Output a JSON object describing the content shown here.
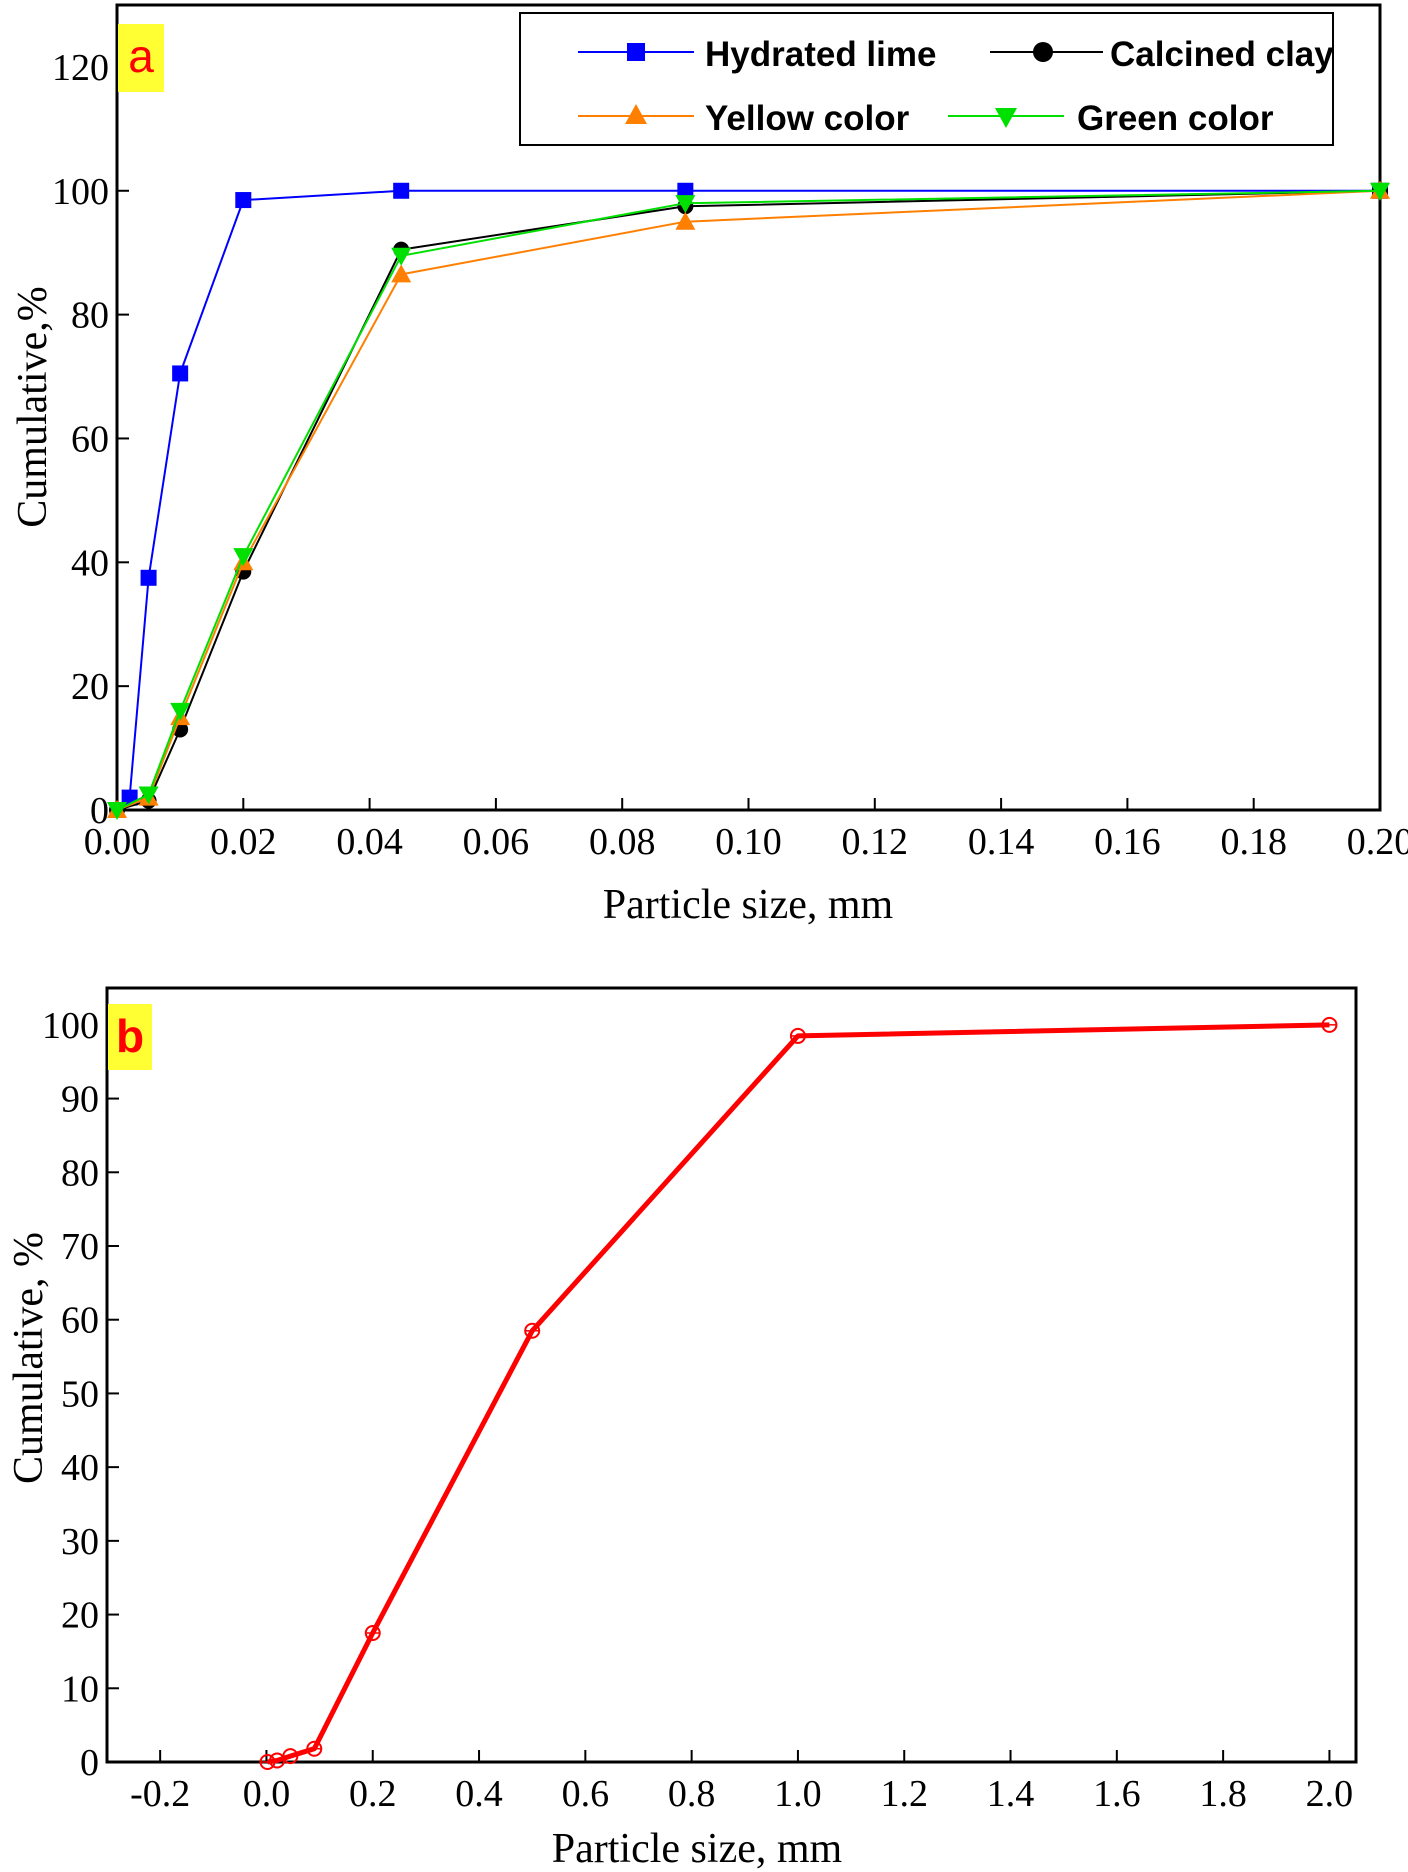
{
  "chart_data": [
    {
      "type": "line",
      "panel_label": "a",
      "xlabel": "Particle size, mm",
      "ylabel": "Cumulative,%",
      "xlim": [
        0,
        0.2
      ],
      "ylim": [
        0,
        130
      ],
      "x_ticks": [
        "0.00",
        "0.02",
        "0.04",
        "0.06",
        "0.08",
        "0.10",
        "0.12",
        "0.14",
        "0.16",
        "0.18",
        "0.20"
      ],
      "y_ticks": [
        "0",
        "20",
        "40",
        "60",
        "80",
        "100",
        "120"
      ],
      "grid": false,
      "legend_position": "top-right",
      "series": [
        {
          "name": "Hydrated lime",
          "color": "#0000ff",
          "marker": "square",
          "x": [
            0.002,
            0.005,
            0.01,
            0.02,
            0.045,
            0.09,
            0.2
          ],
          "y": [
            2,
            37.5,
            70.5,
            98.5,
            100,
            100,
            100
          ]
        },
        {
          "name": "Calcined clay",
          "color": "#000000",
          "marker": "circle",
          "x": [
            0,
            0.005,
            0.01,
            0.02,
            0.045,
            0.09,
            0.2
          ],
          "y": [
            0,
            1.5,
            13,
            38.5,
            90.5,
            97.5,
            100
          ]
        },
        {
          "name": "Yellow color",
          "color": "#ff7f00",
          "marker": "triangle-up",
          "x": [
            0,
            0.005,
            0.01,
            0.02,
            0.045,
            0.09,
            0.2
          ],
          "y": [
            0,
            2,
            15,
            40,
            86.5,
            95,
            100
          ]
        },
        {
          "name": "Green color",
          "color": "#00e000",
          "marker": "triangle-down",
          "x": [
            0,
            0.005,
            0.01,
            0.02,
            0.045,
            0.09,
            0.2
          ],
          "y": [
            0,
            2.5,
            16,
            41,
            89.5,
            98,
            100
          ]
        }
      ]
    },
    {
      "type": "line",
      "panel_label": "b",
      "xlabel": "Particle size, mm",
      "ylabel": "Cumulative, %",
      "xlim": [
        -0.3,
        2.05
      ],
      "ylim": [
        0,
        105
      ],
      "x_ticks": [
        "-0.2",
        "0.0",
        "0.2",
        "0.4",
        "0.6",
        "0.8",
        "1.0",
        "1.2",
        "1.4",
        "1.6",
        "1.8",
        "2.0"
      ],
      "y_ticks": [
        "0",
        "10",
        "20",
        "30",
        "40",
        "50",
        "60",
        "70",
        "80",
        "90",
        "100"
      ],
      "grid": false,
      "series": [
        {
          "color": "#ff0000",
          "marker": "open-circle",
          "x": [
            0.002,
            0.02,
            0.045,
            0.09,
            0.2,
            0.5,
            1.0,
            2.0
          ],
          "y": [
            0,
            0.2,
            0.8,
            1.8,
            17.5,
            58.5,
            98.5,
            100
          ]
        }
      ]
    }
  ]
}
